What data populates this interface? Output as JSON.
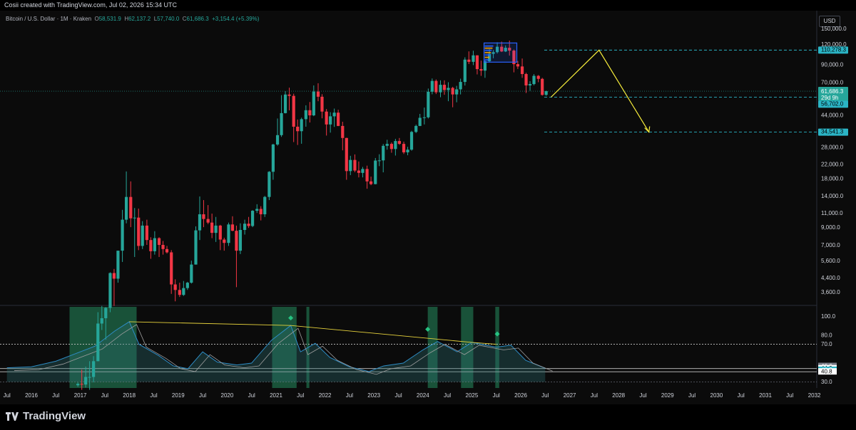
{
  "header": {
    "credit": "Cosii created with TradingView.com, Jul 02, 2026 15:34 UTC"
  },
  "legend": {
    "symbol": "Bitcoin / U.S. Dollar · 1M · Kraken",
    "o_label": "O",
    "o": "58,531.9",
    "h_label": "H",
    "h": "62,137.2",
    "l_label": "L",
    "l": "57,740.0",
    "c_label": "C",
    "c": "61,686.3",
    "change": "+3,154.4 (+5.39%)"
  },
  "currency_button": "USD",
  "footer": {
    "brand": "TradingView"
  },
  "colors": {
    "up": "#26a69a",
    "down": "#f23645",
    "arrow": "#f5eb3b",
    "accent": "#2bb4c5",
    "bg": "#0b0b0b"
  },
  "chart_data": {
    "type": "candlestick",
    "scale": "log",
    "price_axis": {
      "ticks": [
        "150,000.0",
        "120,000.0",
        "90,000.0",
        "70,000.0",
        "44,000.0",
        "34,000.0",
        "28,000.0",
        "22,000.0",
        "18,000.0",
        "14,000.0",
        "11,000.0",
        "9,000.0",
        "7,000.0",
        "5,600.0",
        "4,400.0",
        "3,600.0"
      ],
      "last_price": "61,686.3",
      "countdown": "29d 9h",
      "labels": [
        "110,278.3",
        "56,702.0",
        "34,541.3"
      ]
    },
    "time_axis": {
      "ticks": [
        "Jul",
        "2016",
        "Jul",
        "2017",
        "Jul",
        "2018",
        "Jul",
        "2019",
        "Jul",
        "2020",
        "Jul",
        "2021",
        "Jul",
        "2022",
        "Jul",
        "2023",
        "Jul",
        "2024",
        "Jul",
        "2025",
        "Jul",
        "2026",
        "Jul",
        "2027",
        "Jul",
        "2028",
        "Jul",
        "2029",
        "Jul",
        "2030",
        "Jul",
        "2031",
        "Jul",
        "2032"
      ]
    },
    "projection": [
      "56,702.0",
      "110,278.3",
      "34,541.3"
    ],
    "candles": [
      [
        2016.95,
        960,
        1000,
        940,
        980
      ],
      [
        2017.03,
        980,
        1200,
        900,
        970
      ],
      [
        2017.11,
        970,
        1250,
        930,
        1080
      ],
      [
        2017.19,
        1080,
        1350,
        900,
        1080
      ],
      [
        2017.27,
        1080,
        1450,
        1000,
        1350
      ],
      [
        2017.36,
        1350,
        2700,
        1350,
        2300
      ],
      [
        2017.44,
        2300,
        2950,
        2100,
        2480
      ],
      [
        2017.52,
        2480,
        2900,
        1830,
        2870
      ],
      [
        2017.61,
        2870,
        4750,
        2700,
        4700
      ],
      [
        2017.69,
        4700,
        4980,
        2950,
        4340
      ],
      [
        2017.77,
        4340,
        6450,
        4100,
        6450
      ],
      [
        2017.86,
        6450,
        11500,
        5500,
        10000
      ],
      [
        2017.94,
        10000,
        19800,
        9500,
        13800
      ],
      [
        2018.03,
        13800,
        17200,
        9000,
        10200
      ],
      [
        2018.11,
        10200,
        11800,
        5900,
        10300
      ],
      [
        2018.19,
        10300,
        11700,
        6500,
        6900
      ],
      [
        2018.27,
        6900,
        9800,
        6600,
        9200
      ],
      [
        2018.36,
        9200,
        10000,
        7000,
        7500
      ],
      [
        2018.44,
        7500,
        7800,
        5750,
        6400
      ],
      [
        2018.52,
        6400,
        8500,
        6100,
        7700
      ],
      [
        2018.61,
        7700,
        7800,
        5900,
        7000
      ],
      [
        2018.69,
        7000,
        7400,
        6100,
        6600
      ],
      [
        2018.77,
        6600,
        6900,
        6200,
        6300
      ],
      [
        2018.86,
        6300,
        6500,
        3500,
        4000
      ],
      [
        2018.94,
        4000,
        4300,
        3150,
        3700
      ],
      [
        2019.03,
        3700,
        4100,
        3350,
        3450
      ],
      [
        2019.11,
        3450,
        4200,
        3400,
        3800
      ],
      [
        2019.19,
        3800,
        4150,
        3700,
        4100
      ],
      [
        2019.27,
        4100,
        5600,
        4050,
        5300
      ],
      [
        2019.36,
        5300,
        9100,
        5300,
        8600
      ],
      [
        2019.44,
        8600,
        13900,
        7500,
        10800
      ],
      [
        2019.52,
        10800,
        13200,
        9000,
        10100
      ],
      [
        2019.61,
        10100,
        12300,
        9400,
        9600
      ],
      [
        2019.69,
        9600,
        10900,
        7700,
        8300
      ],
      [
        2019.77,
        8300,
        10400,
        7300,
        9200
      ],
      [
        2019.86,
        9200,
        9300,
        6500,
        7550
      ],
      [
        2019.94,
        7550,
        7750,
        6450,
        7200
      ],
      [
        2020.03,
        7200,
        9600,
        6900,
        9350
      ],
      [
        2020.11,
        9350,
        10500,
        8500,
        8550
      ],
      [
        2020.19,
        8550,
        9200,
        3850,
        6450
      ],
      [
        2020.27,
        6450,
        9500,
        6150,
        8650
      ],
      [
        2020.36,
        8650,
        10000,
        8100,
        9450
      ],
      [
        2020.44,
        9450,
        10400,
        8900,
        9150
      ],
      [
        2020.52,
        9150,
        11450,
        9000,
        11350
      ],
      [
        2020.61,
        11350,
        12450,
        11000,
        11650
      ],
      [
        2020.69,
        11650,
        12100,
        9900,
        10800
      ],
      [
        2020.77,
        10800,
        14000,
        10400,
        13800
      ],
      [
        2020.86,
        13800,
        19900,
        13200,
        19700
      ],
      [
        2020.94,
        19700,
        29300,
        17600,
        29000
      ],
      [
        2021.03,
        29000,
        41900,
        28500,
        33100
      ],
      [
        2021.11,
        33100,
        58300,
        32300,
        45200
      ],
      [
        2021.19,
        45200,
        61700,
        45000,
        58800
      ],
      [
        2021.27,
        58800,
        64800,
        47000,
        57700
      ],
      [
        2021.36,
        57700,
        59500,
        30000,
        37300
      ],
      [
        2021.44,
        37300,
        41300,
        28800,
        35000
      ],
      [
        2021.52,
        35000,
        42400,
        29300,
        41500
      ],
      [
        2021.61,
        41500,
        50500,
        37300,
        47100
      ],
      [
        2021.69,
        47100,
        52900,
        39600,
        43800
      ],
      [
        2021.77,
        43800,
        66900,
        43300,
        61300
      ],
      [
        2021.86,
        61300,
        69000,
        53500,
        57000
      ],
      [
        2021.94,
        57000,
        59100,
        42000,
        46200
      ],
      [
        2022.03,
        46200,
        47900,
        32900,
        38500
      ],
      [
        2022.11,
        38500,
        45800,
        34300,
        43200
      ],
      [
        2022.19,
        43200,
        48200,
        37200,
        45500
      ],
      [
        2022.27,
        45500,
        47400,
        37600,
        37700
      ],
      [
        2022.36,
        37700,
        40000,
        26700,
        31800
      ],
      [
        2022.44,
        31800,
        31900,
        17600,
        19900
      ],
      [
        2022.52,
        19900,
        24700,
        18800,
        23300
      ],
      [
        2022.61,
        23300,
        25200,
        19600,
        20050
      ],
      [
        2022.69,
        20050,
        22800,
        18200,
        19400
      ],
      [
        2022.77,
        19400,
        21100,
        18200,
        20500
      ],
      [
        2022.86,
        20500,
        21500,
        15500,
        17200
      ],
      [
        2022.94,
        17200,
        18400,
        16300,
        16550
      ],
      [
        2023.03,
        16550,
        23950,
        16500,
        23100
      ],
      [
        2023.11,
        23100,
        25250,
        21350,
        23150
      ],
      [
        2023.19,
        23150,
        29200,
        19550,
        28450
      ],
      [
        2023.27,
        28450,
        31000,
        26950,
        29250
      ],
      [
        2023.36,
        29250,
        29850,
        25800,
        27200
      ],
      [
        2023.44,
        27200,
        31400,
        24800,
        30450
      ],
      [
        2023.52,
        30450,
        31800,
        28850,
        29250
      ],
      [
        2023.61,
        29250,
        30200,
        25350,
        25950
      ],
      [
        2023.69,
        25950,
        28050,
        24900,
        26950
      ],
      [
        2023.77,
        26950,
        35200,
        26550,
        34650
      ],
      [
        2023.86,
        34650,
        38400,
        34100,
        37700
      ],
      [
        2023.94,
        37700,
        44700,
        37600,
        42300
      ],
      [
        2024.03,
        42300,
        48900,
        38500,
        42600
      ],
      [
        2024.11,
        42600,
        64000,
        41900,
        61200
      ],
      [
        2024.19,
        61200,
        73800,
        59000,
        71300
      ],
      [
        2024.27,
        71300,
        72800,
        59200,
        60700
      ],
      [
        2024.36,
        60700,
        71900,
        56600,
        67500
      ],
      [
        2024.44,
        67500,
        71900,
        58600,
        62700
      ],
      [
        2024.52,
        62700,
        70000,
        53500,
        64600
      ],
      [
        2024.61,
        64600,
        65600,
        49100,
        58900
      ],
      [
        2024.69,
        58900,
        66500,
        52700,
        63300
      ],
      [
        2024.77,
        63300,
        73600,
        58900,
        70300
      ],
      [
        2024.86,
        70300,
        99600,
        66800,
        96400
      ],
      [
        2024.94,
        96400,
        108300,
        90500,
        93400
      ],
      [
        2025.03,
        93400,
        109300,
        89200,
        102400
      ],
      [
        2025.11,
        102400,
        102500,
        78200,
        84300
      ],
      [
        2025.19,
        84300,
        95000,
        76600,
        82500
      ],
      [
        2025.27,
        82500,
        95800,
        74500,
        94200
      ],
      [
        2025.36,
        94200,
        111900,
        93300,
        104600
      ],
      [
        2025.44,
        104600,
        110500,
        98200,
        107100
      ],
      [
        2025.52,
        107100,
        123200,
        105100,
        115700
      ],
      [
        2025.61,
        115700,
        124400,
        107300,
        108200
      ],
      [
        2025.69,
        108200,
        117900,
        107300,
        114000
      ],
      [
        2025.77,
        114000,
        126200,
        102000,
        109500
      ],
      [
        2025.86,
        109500,
        111200,
        80500,
        90400
      ],
      [
        2025.94,
        90400,
        94600,
        84400,
        87500
      ],
      [
        2026.03,
        87500,
        97900,
        74500,
        78600
      ],
      [
        2026.11,
        78600,
        80000,
        60100,
        66900
      ],
      [
        2026.19,
        66900,
        71000,
        62000,
        68200
      ],
      [
        2026.27,
        68200,
        78500,
        67000,
        76600
      ],
      [
        2026.36,
        76600,
        77500,
        70000,
        73400
      ],
      [
        2026.44,
        73400,
        74500,
        57900,
        58500
      ],
      [
        2026.52,
        58531.9,
        62137.2,
        57740.0,
        61686.3
      ]
    ]
  },
  "indicator": {
    "axis_ticks": [
      "100.0",
      "80.0"
    ],
    "labels": [
      "70.0",
      "46.6",
      "44.2",
      "42.5",
      "40.8",
      "30.0"
    ]
  }
}
